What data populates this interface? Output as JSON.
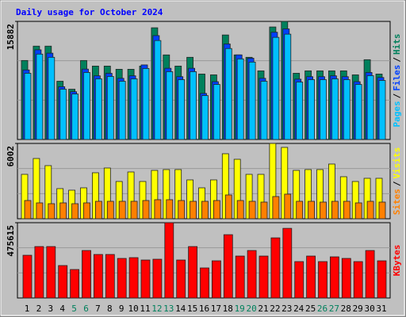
{
  "title": "Daily usage for October 2024",
  "chart_data": [
    {
      "type": "bar",
      "ylim": [
        0,
        15882
      ],
      "yticks": [
        15882
      ],
      "separator": "/",
      "series": [
        {
          "name": "Hits",
          "color": "#00805C",
          "values": [
            10624,
            12555,
            12555,
            7833,
            6760,
            10624,
            9872,
            9872,
            9443,
            9443,
            9872,
            15024,
            11375,
            9872,
            11053,
            8799,
            8692,
            14057,
            11375,
            11053,
            9229,
            15131,
            15882,
            8907,
            9229,
            9229,
            9229,
            9229,
            8692,
            10731,
            8799
          ]
        },
        {
          "name": "Files",
          "color": "#0040FF",
          "values": [
            9352,
            12056,
            11606,
            7098,
            6423,
            9465,
            8563,
            8901,
            8225,
            8563,
            10028,
            13971,
            9577,
            8450,
            9577,
            6197,
            7774,
            12845,
            11380,
            10929,
            8225,
            14422,
            14872,
            8112,
            8450,
            8450,
            8563,
            8450,
            7774,
            9013,
            8338
          ]
        },
        {
          "name": "Pages",
          "color": "#00C0FF",
          "values": [
            8907,
            11482,
            11053,
            6760,
            6117,
            9014,
            8155,
            8477,
            7833,
            8155,
            9550,
            13306,
            9121,
            8048,
            9121,
            5902,
            7404,
            12233,
            10838,
            10409,
            7833,
            13735,
            14164,
            7726,
            8048,
            8048,
            8155,
            8048,
            7404,
            8584,
            7941
          ]
        }
      ]
    },
    {
      "type": "bar",
      "ylim": [
        0,
        6002
      ],
      "yticks": [
        6002
      ],
      "separator": "/",
      "series": [
        {
          "name": "Visits",
          "color": "#FFFF00",
          "values": [
            3539,
            4802,
            4234,
            2401,
            2275,
            2464,
            3665,
            4044,
            2970,
            3728,
            2970,
            3855,
            3918,
            3918,
            3096,
            2464,
            3096,
            5182,
            4739,
            3539,
            3539,
            6002,
            5687,
            3855,
            3918,
            3918,
            4360,
            3349,
            2970,
            3223,
            3223
          ]
        },
        {
          "name": "Sites",
          "color": "#FF8000",
          "values": [
            1453,
            1264,
            1200,
            1264,
            1200,
            1264,
            1390,
            1390,
            1390,
            1390,
            1453,
            1517,
            1517,
            1453,
            1390,
            1390,
            1453,
            1896,
            1453,
            1390,
            1327,
            1770,
            1960,
            1390,
            1390,
            1327,
            1390,
            1390,
            1264,
            1390,
            1327
          ]
        }
      ]
    },
    {
      "type": "bar",
      "ylim": [
        0,
        475615
      ],
      "yticks": [
        475615
      ],
      "categories": [
        "1",
        "2",
        "3",
        "4",
        "5",
        "6",
        "7",
        "8",
        "9",
        "10",
        "11",
        "12",
        "13",
        "14",
        "15",
        "16",
        "17",
        "18",
        "19",
        "20",
        "21",
        "22",
        "23",
        "24",
        "25",
        "26",
        "27",
        "28",
        "29",
        "30",
        "31"
      ],
      "category_colors": [
        "#000000",
        "#000000",
        "#000000",
        "#000000",
        "#00805C",
        "#00805C",
        "#000000",
        "#000000",
        "#000000",
        "#000000",
        "#000000",
        "#00805C",
        "#00805C",
        "#000000",
        "#000000",
        "#000000",
        "#000000",
        "#000000",
        "#00805C",
        "#00805C",
        "#000000",
        "#000000",
        "#000000",
        "#000000",
        "#000000",
        "#00805C",
        "#00805C",
        "#000000",
        "#000000",
        "#000000",
        "#000000"
      ],
      "series": [
        {
          "name": "KBytes",
          "color": "#FF0000",
          "values": [
            270000,
            325000,
            325000,
            205000,
            180000,
            300000,
            275000,
            275000,
            250000,
            255000,
            240000,
            245000,
            475615,
            240000,
            325000,
            190000,
            235000,
            400000,
            265000,
            300000,
            265000,
            380000,
            440000,
            230000,
            265000,
            230000,
            260000,
            250000,
            230000,
            300000,
            235000
          ]
        }
      ]
    }
  ]
}
